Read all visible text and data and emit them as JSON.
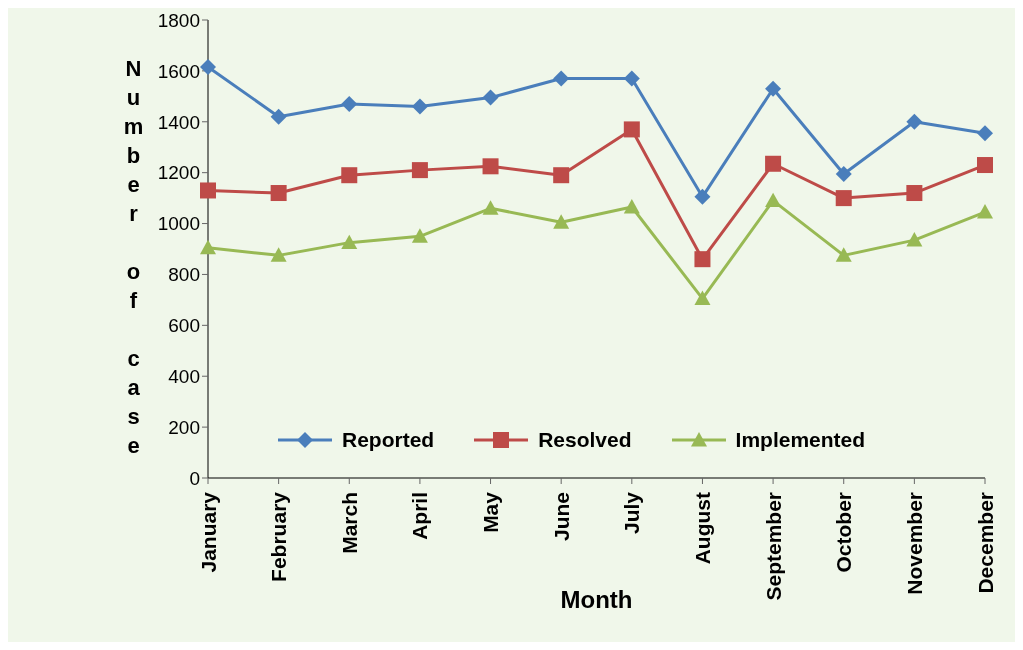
{
  "chart_data": {
    "type": "line",
    "xlabel": "Month",
    "ylabel": "Number of case",
    "categories": [
      "January",
      "February",
      "March",
      "April",
      "May",
      "June",
      "July",
      "August",
      "September",
      "October",
      "November",
      "December"
    ],
    "series": [
      {
        "name": "Reported",
        "color": "#4a7ebb",
        "marker": "diamond",
        "values": [
          1615,
          1420,
          1470,
          1460,
          1495,
          1570,
          1570,
          1105,
          1530,
          1195,
          1400,
          1355
        ]
      },
      {
        "name": "Resolved",
        "color": "#be4b48",
        "marker": "square",
        "values": [
          1130,
          1120,
          1190,
          1210,
          1225,
          1190,
          1370,
          860,
          1235,
          1100,
          1120,
          1230
        ]
      },
      {
        "name": "Implemented",
        "color": "#98b954",
        "marker": "triangle",
        "values": [
          905,
          875,
          925,
          950,
          1060,
          1005,
          1065,
          705,
          1090,
          875,
          935,
          1045
        ]
      }
    ],
    "ylim": [
      0,
      1800
    ],
    "yticks": [
      0,
      200,
      400,
      600,
      800,
      1000,
      1200,
      1400,
      1600,
      1800
    ],
    "legend": "bottom",
    "line_style": "solid"
  }
}
